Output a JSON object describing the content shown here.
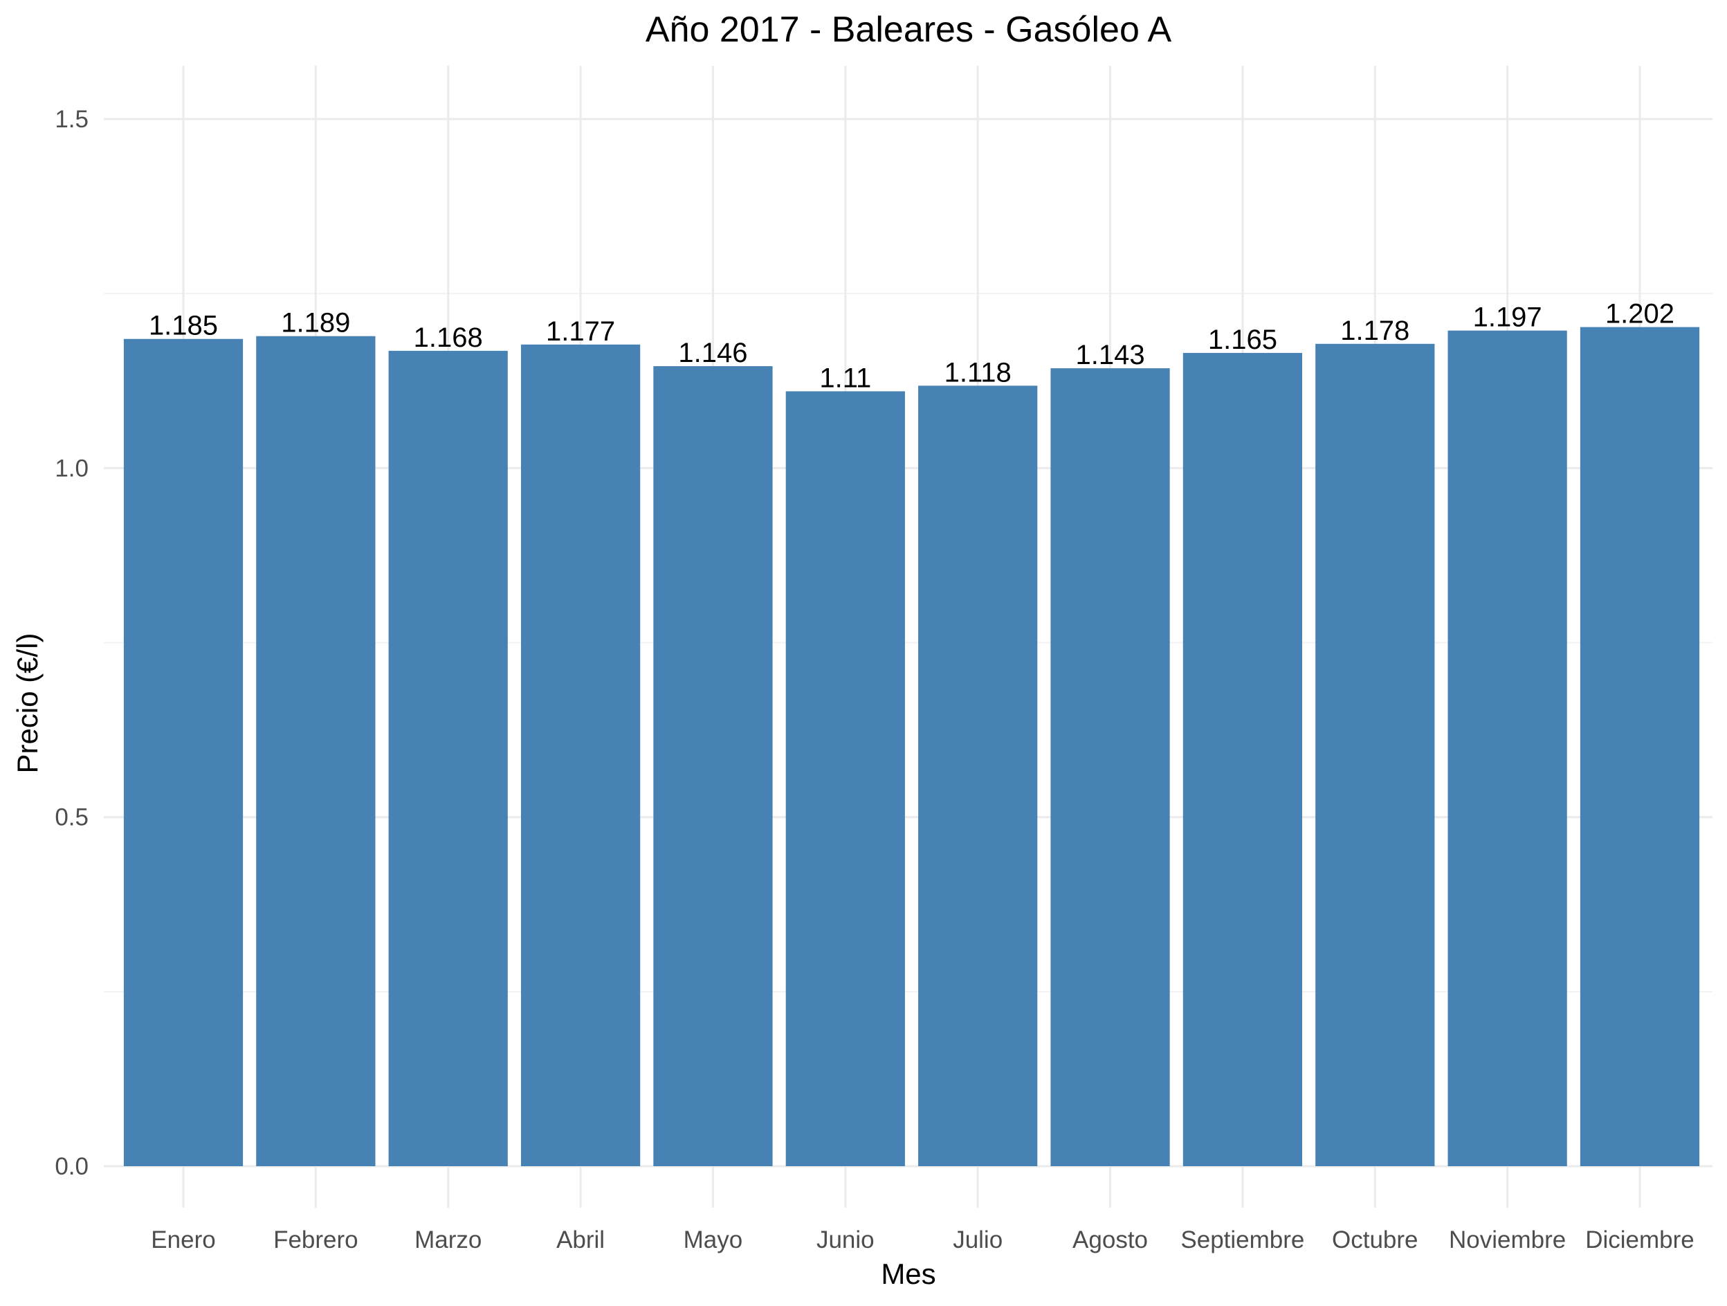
{
  "chart_data": {
    "type": "bar",
    "title": "Año 2017 - Baleares - Gasóleo A",
    "xlabel": "Mes",
    "ylabel": "Precio (€/l)",
    "categories": [
      "Enero",
      "Febrero",
      "Marzo",
      "Abril",
      "Mayo",
      "Junio",
      "Julio",
      "Agosto",
      "Septiembre",
      "Octubre",
      "Noviembre",
      "Diciembre"
    ],
    "values": [
      1.185,
      1.189,
      1.168,
      1.177,
      1.146,
      1.11,
      1.118,
      1.143,
      1.165,
      1.178,
      1.197,
      1.202
    ],
    "data_labels": [
      "1.185",
      "1.189",
      "1.168",
      "1.177",
      "1.146",
      "1.11",
      "1.118",
      "1.143",
      "1.165",
      "1.178",
      "1.197",
      "1.202"
    ],
    "ylim": [
      0,
      1.5
    ],
    "y_ticks": [
      0,
      0.5,
      1.0,
      1.5
    ],
    "y_tick_labels": [
      "0.0",
      "0.5",
      "1.0",
      "1.5"
    ],
    "grid": true,
    "legend": "none",
    "bar_color": "#4682b4"
  }
}
